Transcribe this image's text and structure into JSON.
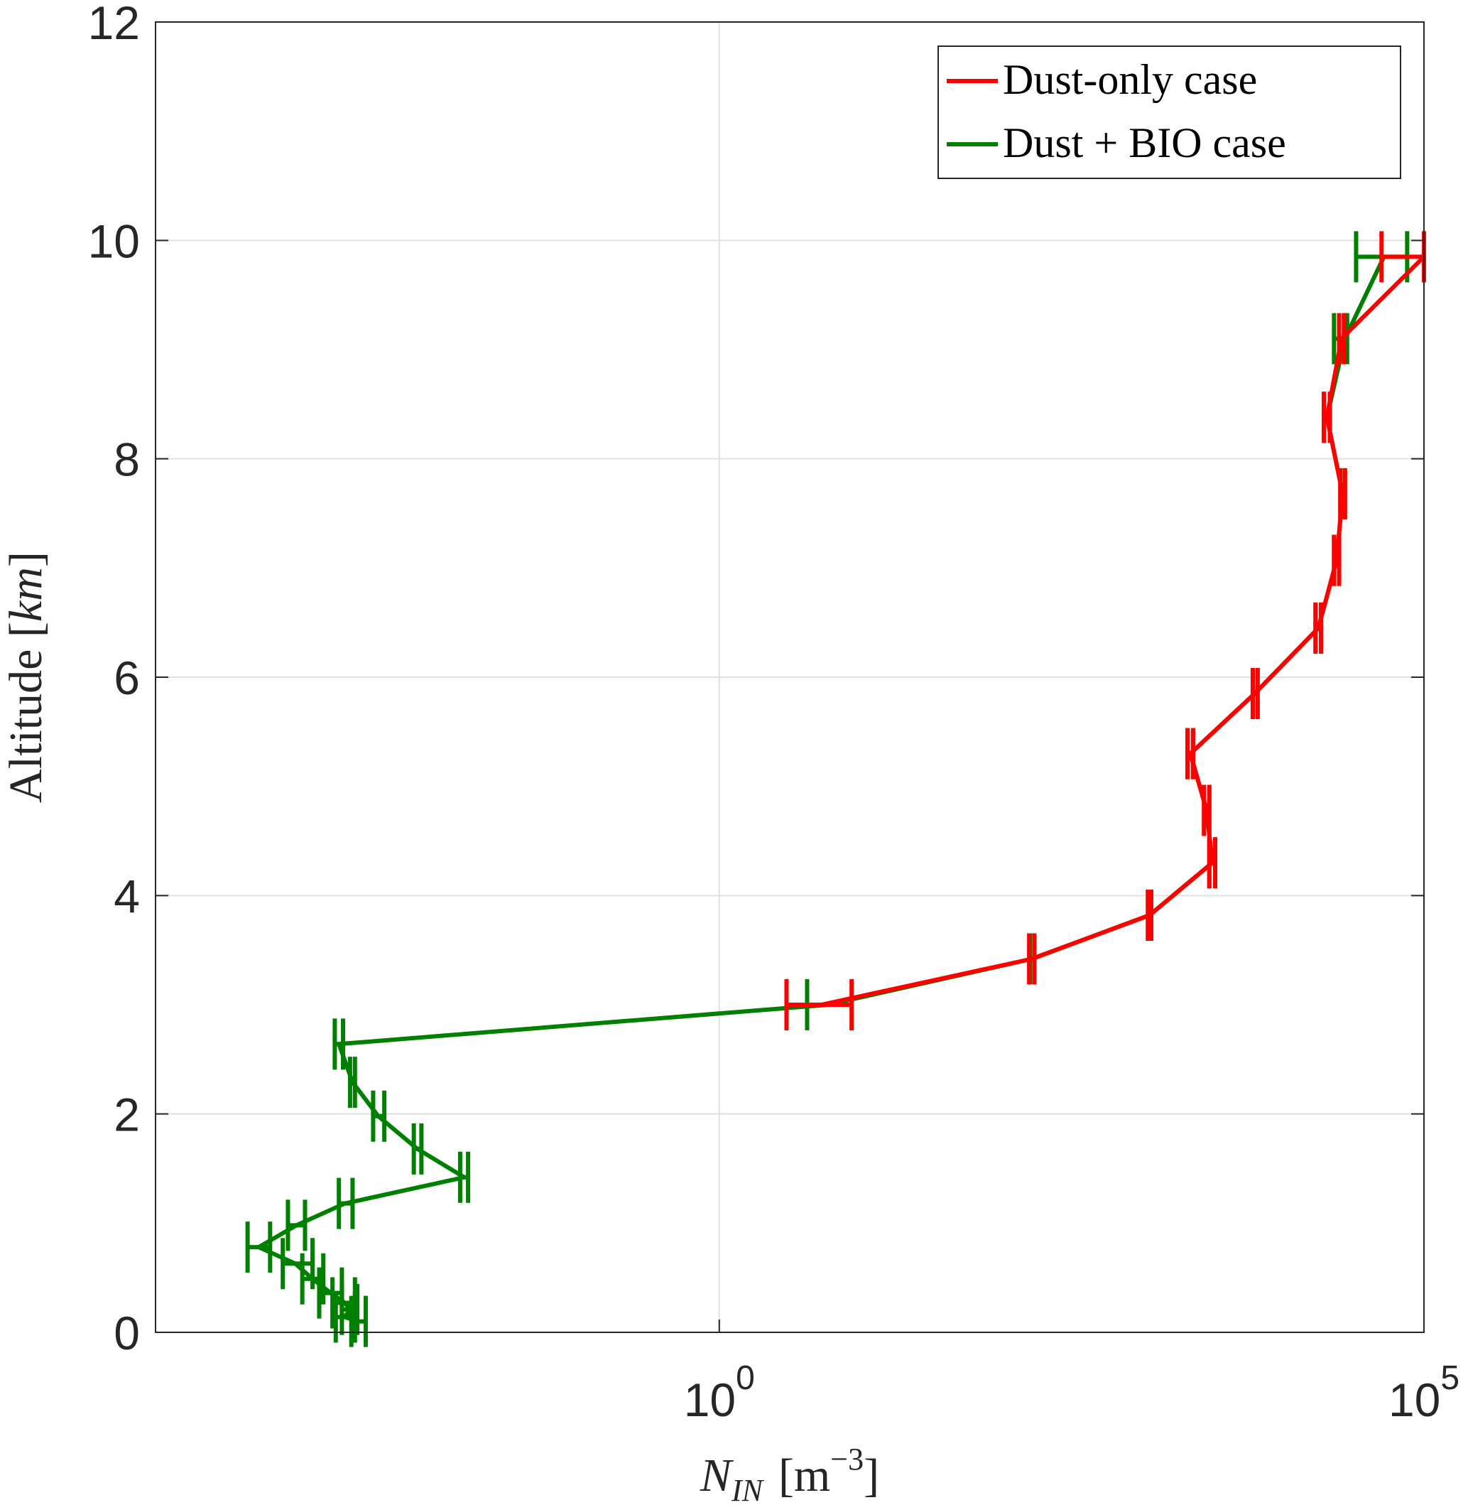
{
  "chart_data": {
    "type": "line",
    "title": "",
    "xlabel": "N_IN [m^-3]",
    "xlabel_main": "N",
    "xlabel_sub": "IN",
    "xlabel_unit_open": "[m",
    "xlabel_unit_sup": "−3",
    "xlabel_unit_close": "]",
    "ylabel": "Altitude [km]",
    "ylabel_main": "Altitude [",
    "ylabel_unit": "km",
    "ylabel_close": "]",
    "xscale": "log",
    "xlim": [
      0.0001,
      100000
    ],
    "ylim": [
      0,
      12
    ],
    "grid": true,
    "x_ticks": [
      {
        "value": 1,
        "base": "10",
        "exp": "0"
      },
      {
        "value": 100000,
        "base": "10",
        "exp": "5"
      }
    ],
    "y_ticks": [
      {
        "value": 0,
        "label": "0"
      },
      {
        "value": 2,
        "label": "2"
      },
      {
        "value": 4,
        "label": "4"
      },
      {
        "value": 6,
        "label": "6"
      },
      {
        "value": 8,
        "label": "8"
      },
      {
        "value": 10,
        "label": "10"
      },
      {
        "value": 12,
        "label": "12"
      }
    ],
    "legend_position": "top-right",
    "series": [
      {
        "name": "Dust + BIO case",
        "color": "#008000",
        "y": [
          0.1,
          0.14,
          0.21,
          0.27,
          0.36,
          0.49,
          0.63,
          0.78,
          0.98,
          1.18,
          1.42,
          1.68,
          1.98,
          2.29,
          2.64,
          3.0,
          3.42,
          3.82,
          4.3,
          4.78,
          5.3,
          5.85,
          6.45,
          7.07,
          7.68,
          8.38,
          9.1,
          9.85
        ],
        "x": [
          0.00275,
          0.0022,
          0.0024,
          0.0022,
          0.00175,
          0.0013,
          0.00098,
          0.00054,
          0.001,
          0.0022,
          0.0155,
          0.0072,
          0.0038,
          0.0025,
          0.002,
          5.9,
          165,
          1130,
          3150,
          2870,
          2200,
          6300,
          17800,
          24000,
          26500,
          20500,
          27500,
          52000
        ],
        "x_low": [
          0.00245,
          0.0019,
          0.0021,
          0.0018,
          0.00145,
          0.0011,
          0.0008,
          0.00045,
          0.00087,
          0.002,
          0.0145,
          0.0068,
          0.0035,
          0.0024,
          0.00187,
          4.2,
          160,
          1100,
          3000,
          2750,
          2100,
          6100,
          17000,
          23000,
          25500,
          19500,
          23000,
          33000
        ],
        "x_high": [
          0.0031,
          0.0026,
          0.0027,
          0.0026,
          0.0021,
          0.00155,
          0.0013,
          0.00065,
          0.00115,
          0.0025,
          0.0165,
          0.0077,
          0.0042,
          0.0026,
          0.00214,
          8.7,
          172,
          1160,
          3300,
          3000,
          2300,
          6600,
          18600,
          25000,
          27500,
          21500,
          28500,
          76000
        ]
      },
      {
        "name": "Dust-only case",
        "color": "#ff0000",
        "y": [
          3.0,
          3.42,
          3.82,
          4.3,
          4.78,
          5.3,
          5.85,
          6.45,
          7.07,
          7.68,
          8.38,
          9.1,
          9.85
        ],
        "x": [
          5.3,
          165,
          1130,
          3150,
          2870,
          2200,
          6300,
          17800,
          24000,
          26500,
          20500,
          26000,
          100000
        ],
        "x_low": [
          3.0,
          158,
          1100,
          3000,
          2750,
          2100,
          6100,
          17000,
          23000,
          25500,
          19500,
          25000,
          50000
        ],
        "x_high": [
          8.7,
          172,
          1160,
          3300,
          3000,
          2300,
          6600,
          18600,
          25000,
          27500,
          21500,
          27000,
          100000
        ]
      }
    ],
    "legend": [
      {
        "label": "Dust-only case",
        "color": "#ff0000"
      },
      {
        "label": "Dust + BIO case",
        "color": "#008000"
      }
    ]
  }
}
